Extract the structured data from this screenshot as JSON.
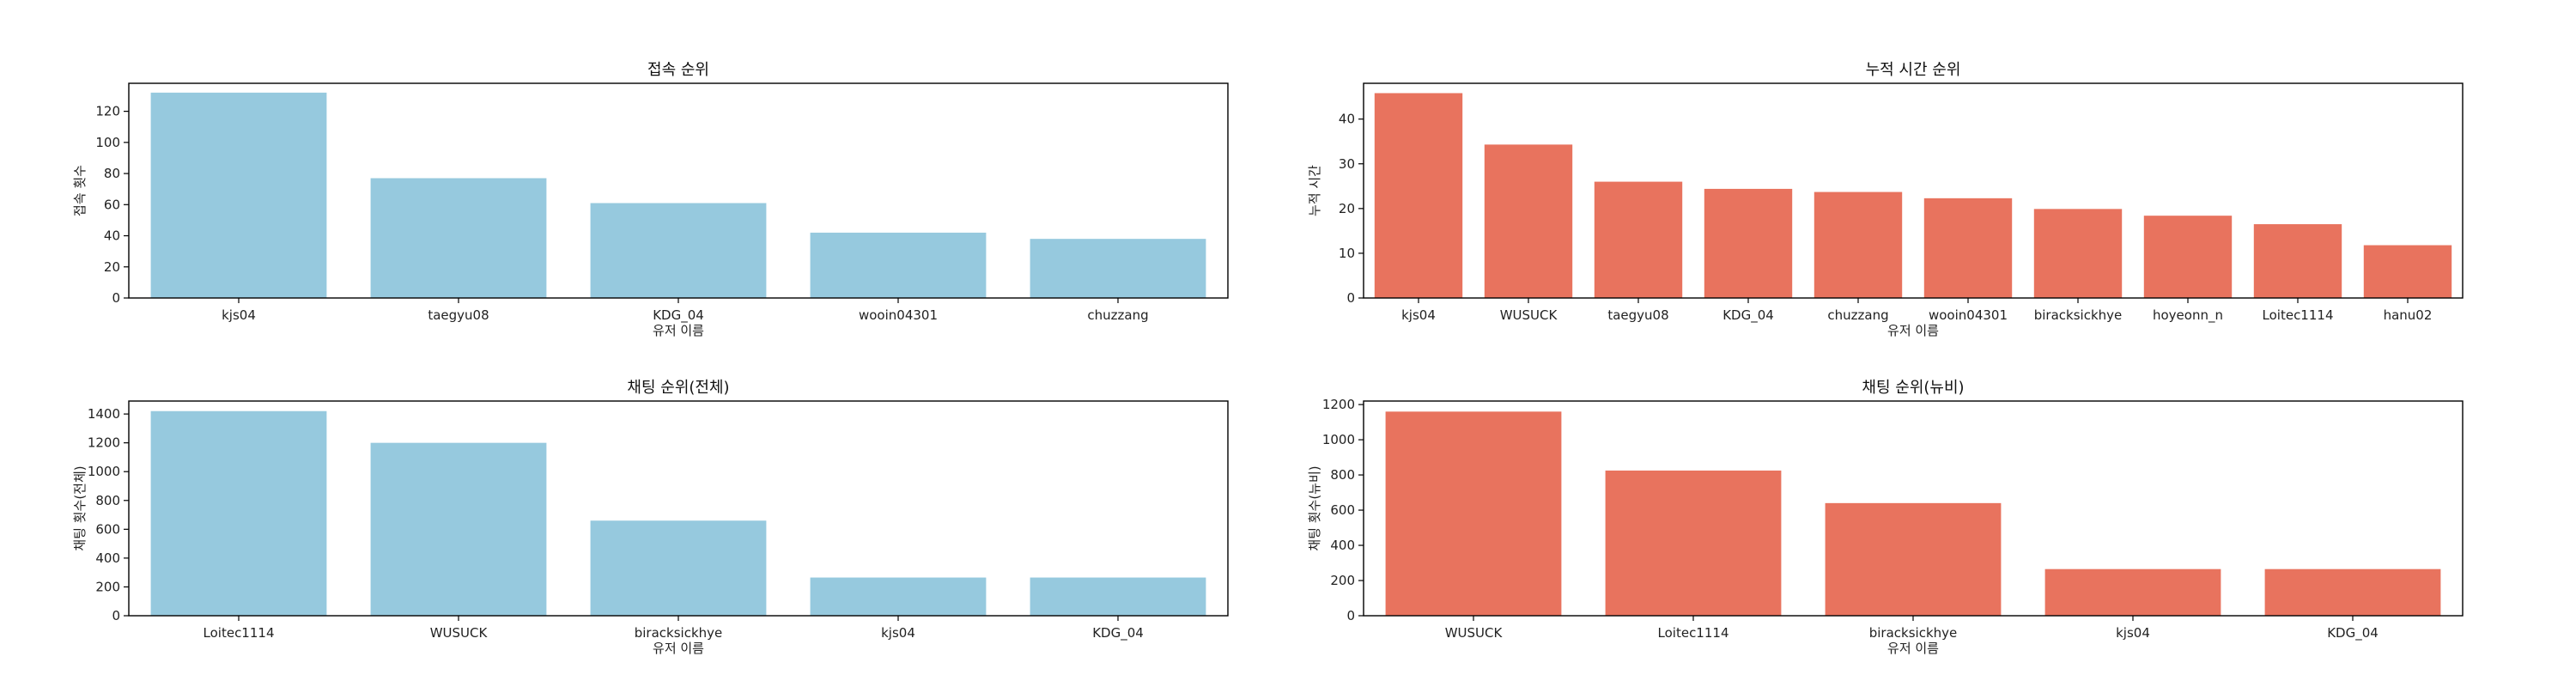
{
  "colors": {
    "blue": "#96c9de",
    "red": "#e8735e"
  },
  "chart_data": [
    {
      "type": "bar",
      "title": "접속 순위",
      "xlabel": "유저 이름",
      "ylabel": "접속 횟수",
      "color": "#96c9de",
      "categories": [
        "kjs04",
        "taegyu08",
        "KDG_04",
        "wooin04301",
        "chuzzang"
      ],
      "values": [
        132,
        77,
        61,
        42,
        38
      ],
      "ylim": [
        0,
        138
      ],
      "yticks": [
        0,
        20,
        40,
        60,
        80,
        100,
        120
      ]
    },
    {
      "type": "bar",
      "title": "누적 시간 순위",
      "xlabel": "유저 이름",
      "ylabel": "누적 시간",
      "color": "#e8735e",
      "categories": [
        "kjs04",
        "WUSUCK",
        "taegyu08",
        "KDG_04",
        "chuzzang",
        "wooin04301",
        "biracksickhye",
        "hoyeonn_n",
        "Loitec1114",
        "hanu02"
      ],
      "values": [
        45.8,
        34.3,
        26.0,
        24.4,
        23.7,
        22.3,
        19.9,
        18.4,
        16.5,
        11.8
      ],
      "ylim": [
        0,
        48
      ],
      "yticks": [
        0,
        10,
        20,
        30,
        40
      ]
    },
    {
      "type": "bar",
      "title": "채팅 순위(전체)",
      "xlabel": "유저 이름",
      "ylabel": "채팅 횟수(전체)",
      "color": "#96c9de",
      "categories": [
        "Loitec1114",
        "WUSUCK",
        "biracksickhye",
        "kjs04",
        "KDG_04"
      ],
      "values": [
        1420,
        1200,
        660,
        265,
        265
      ],
      "ylim": [
        0,
        1490
      ],
      "yticks": [
        0,
        200,
        400,
        600,
        800,
        1000,
        1200,
        1400
      ]
    },
    {
      "type": "bar",
      "title": "채팅 순위(뉴비)",
      "xlabel": "유저 이름",
      "ylabel": "채팅 횟수(뉴비)",
      "color": "#e8735e",
      "categories": [
        "WUSUCK",
        "Loitec1114",
        "biracksickhye",
        "kjs04",
        "KDG_04"
      ],
      "values": [
        1160,
        825,
        640,
        265,
        265
      ],
      "ylim": [
        0,
        1220
      ],
      "yticks": [
        0,
        200,
        400,
        600,
        800,
        1000,
        1200
      ]
    }
  ]
}
